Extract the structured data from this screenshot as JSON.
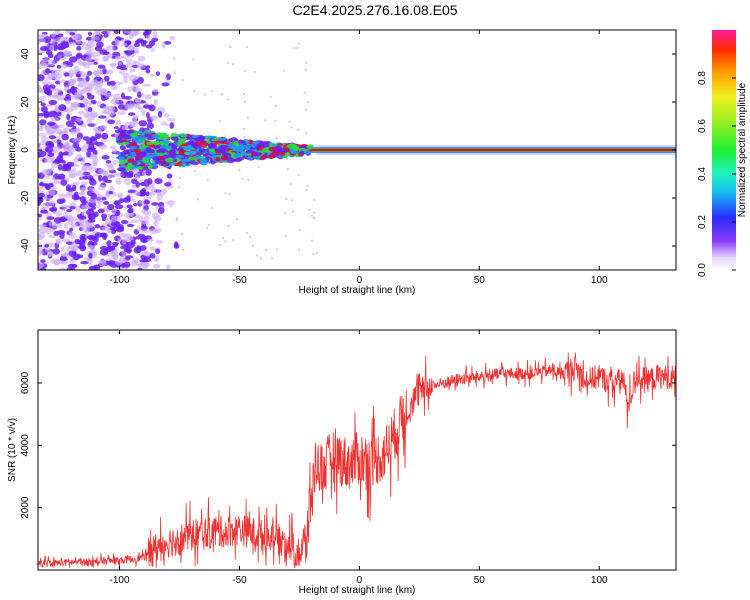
{
  "title": "C2E4.2025.276.16.08.E05",
  "colors": {
    "trace": "#ee3030",
    "band_core": "#e8003a",
    "noise_dark": "#6a1ff0",
    "noise_light": "#c9a8ff",
    "band_mid": "#29e03a",
    "band_low": "#1a9cf4"
  },
  "chart_data": [
    {
      "type": "heatmap",
      "name": "spectrogram",
      "xlabel": "Height of straight line (km)",
      "ylabel": "Frequency (Hz)",
      "xlim": [
        -134,
        132
      ],
      "ylim": [
        -50,
        50
      ],
      "xticks": [
        -100,
        -50,
        0,
        50,
        100
      ],
      "yticks": [
        -40,
        -20,
        0,
        20,
        40
      ],
      "colorbar": {
        "label": "Normalized spectral amplitude",
        "range": [
          0.0,
          1.0
        ],
        "ticks": [
          "0.0",
          "0.2",
          "0.4",
          "0.6",
          "0.8"
        ],
        "tick_values": [
          0.0,
          0.2,
          0.4,
          0.6,
          0.8
        ]
      },
      "features": {
        "broadband_noise_x_range": [
          -134,
          -88
        ],
        "line_center_hz": 0,
        "line_start_km": -100
      }
    },
    {
      "type": "line",
      "name": "snr",
      "xlabel": "Height of straight line (km)",
      "ylabel": "SNR (10 * v/v)",
      "xlim": [
        -134,
        132
      ],
      "ylim": [
        0,
        7700
      ],
      "xticks": [
        -100,
        -50,
        0,
        50,
        100
      ],
      "yticks": [
        2000,
        4000,
        6000
      ],
      "series": [
        {
          "name": "SNR",
          "x": [
            -134,
            -120,
            -100,
            -90,
            -85,
            -80,
            -70,
            -60,
            -50,
            -40,
            -30,
            -25,
            -22,
            -20,
            -18,
            -15,
            -12,
            -10,
            -5,
            0,
            5,
            10,
            15,
            20,
            25,
            30,
            40,
            50,
            60,
            70,
            80,
            85,
            90,
            95,
            100,
            105,
            110,
            112,
            115,
            120,
            125,
            132
          ],
          "y": [
            200,
            250,
            300,
            400,
            700,
            900,
            1100,
            1200,
            1300,
            1100,
            900,
            500,
            900,
            2500,
            3500,
            3200,
            3600,
            3700,
            3400,
            3600,
            3500,
            3700,
            4400,
            5200,
            5700,
            5900,
            6100,
            6200,
            6300,
            6300,
            6400,
            6300,
            6500,
            6100,
            6200,
            6000,
            6100,
            5200,
            6200,
            6100,
            6200,
            6200
          ]
        }
      ]
    }
  ]
}
